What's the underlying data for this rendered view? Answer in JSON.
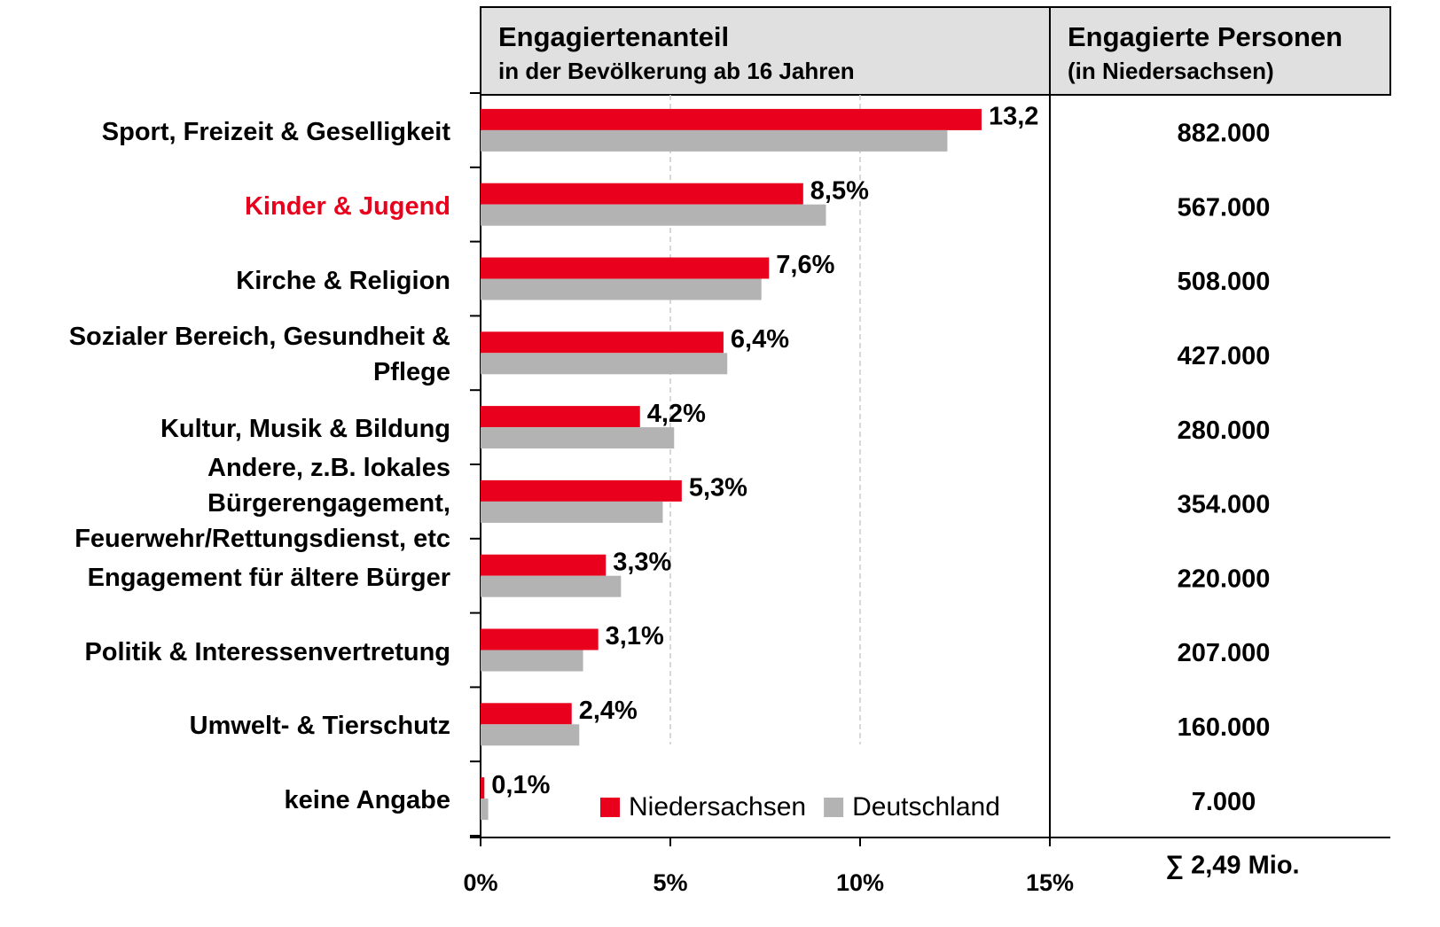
{
  "chart_data": {
    "type": "bar",
    "orientation": "horizontal",
    "header": {
      "left_title": "Engagiertenanteil",
      "left_subtitle": "in der Bevölkerung ab 16 Jahren",
      "right_title": "Engagierte Personen",
      "right_subtitle": "(in Niedersachsen)"
    },
    "categories": [
      "Sport, Freizeit & Geselligkeit",
      "Kinder & Jugend",
      "Kirche & Religion",
      "Sozialer Bereich, Gesundheit &\nPflege",
      "Kultur, Musik & Bildung",
      "Andere, z.B. lokales\nBürgerengagement,\nFeuerwehr/Rettungsdienst, etc",
      "Engagement für ältere Bürger",
      "Politik & Interessenvertretung",
      "Umwelt- & Tierschutz",
      "keine Angabe"
    ],
    "category_label_colors": [
      "#000000",
      "#e8001c",
      "#000000",
      "#000000",
      "#000000",
      "#000000",
      "#000000",
      "#000000",
      "#000000",
      "#000000"
    ],
    "series": [
      {
        "name": "Niedersachsen",
        "color": "#e8001c",
        "values": [
          13.2,
          8.5,
          7.6,
          6.4,
          4.2,
          5.3,
          3.3,
          3.1,
          2.4,
          0.1
        ],
        "value_labels": [
          "13,2",
          "8,5%",
          "7,6%",
          "6,4%",
          "4,2%",
          "5,3%",
          "3,3%",
          "3,1%",
          "2,4%",
          "0,1%"
        ]
      },
      {
        "name": "Deutschland",
        "color": "#b3b3b3",
        "values": [
          12.3,
          9.1,
          7.4,
          6.5,
          5.1,
          4.8,
          3.7,
          2.7,
          2.6,
          0.2
        ]
      }
    ],
    "persons": [
      "882.000",
      "567.000",
      "508.000",
      "427.000",
      "280.000",
      "354.000",
      "220.000",
      "207.000",
      "160.000",
      "7.000"
    ],
    "persons_sum": "∑  2,49 Mio.",
    "xlim": [
      0,
      15
    ],
    "xticks": [
      {
        "value": 0,
        "label": "0%"
      },
      {
        "value": 5,
        "label": "5%"
      },
      {
        "value": 10,
        "label": "10%"
      },
      {
        "value": 15,
        "label": "15%"
      }
    ],
    "grid": true,
    "legend": "bottom-right"
  }
}
